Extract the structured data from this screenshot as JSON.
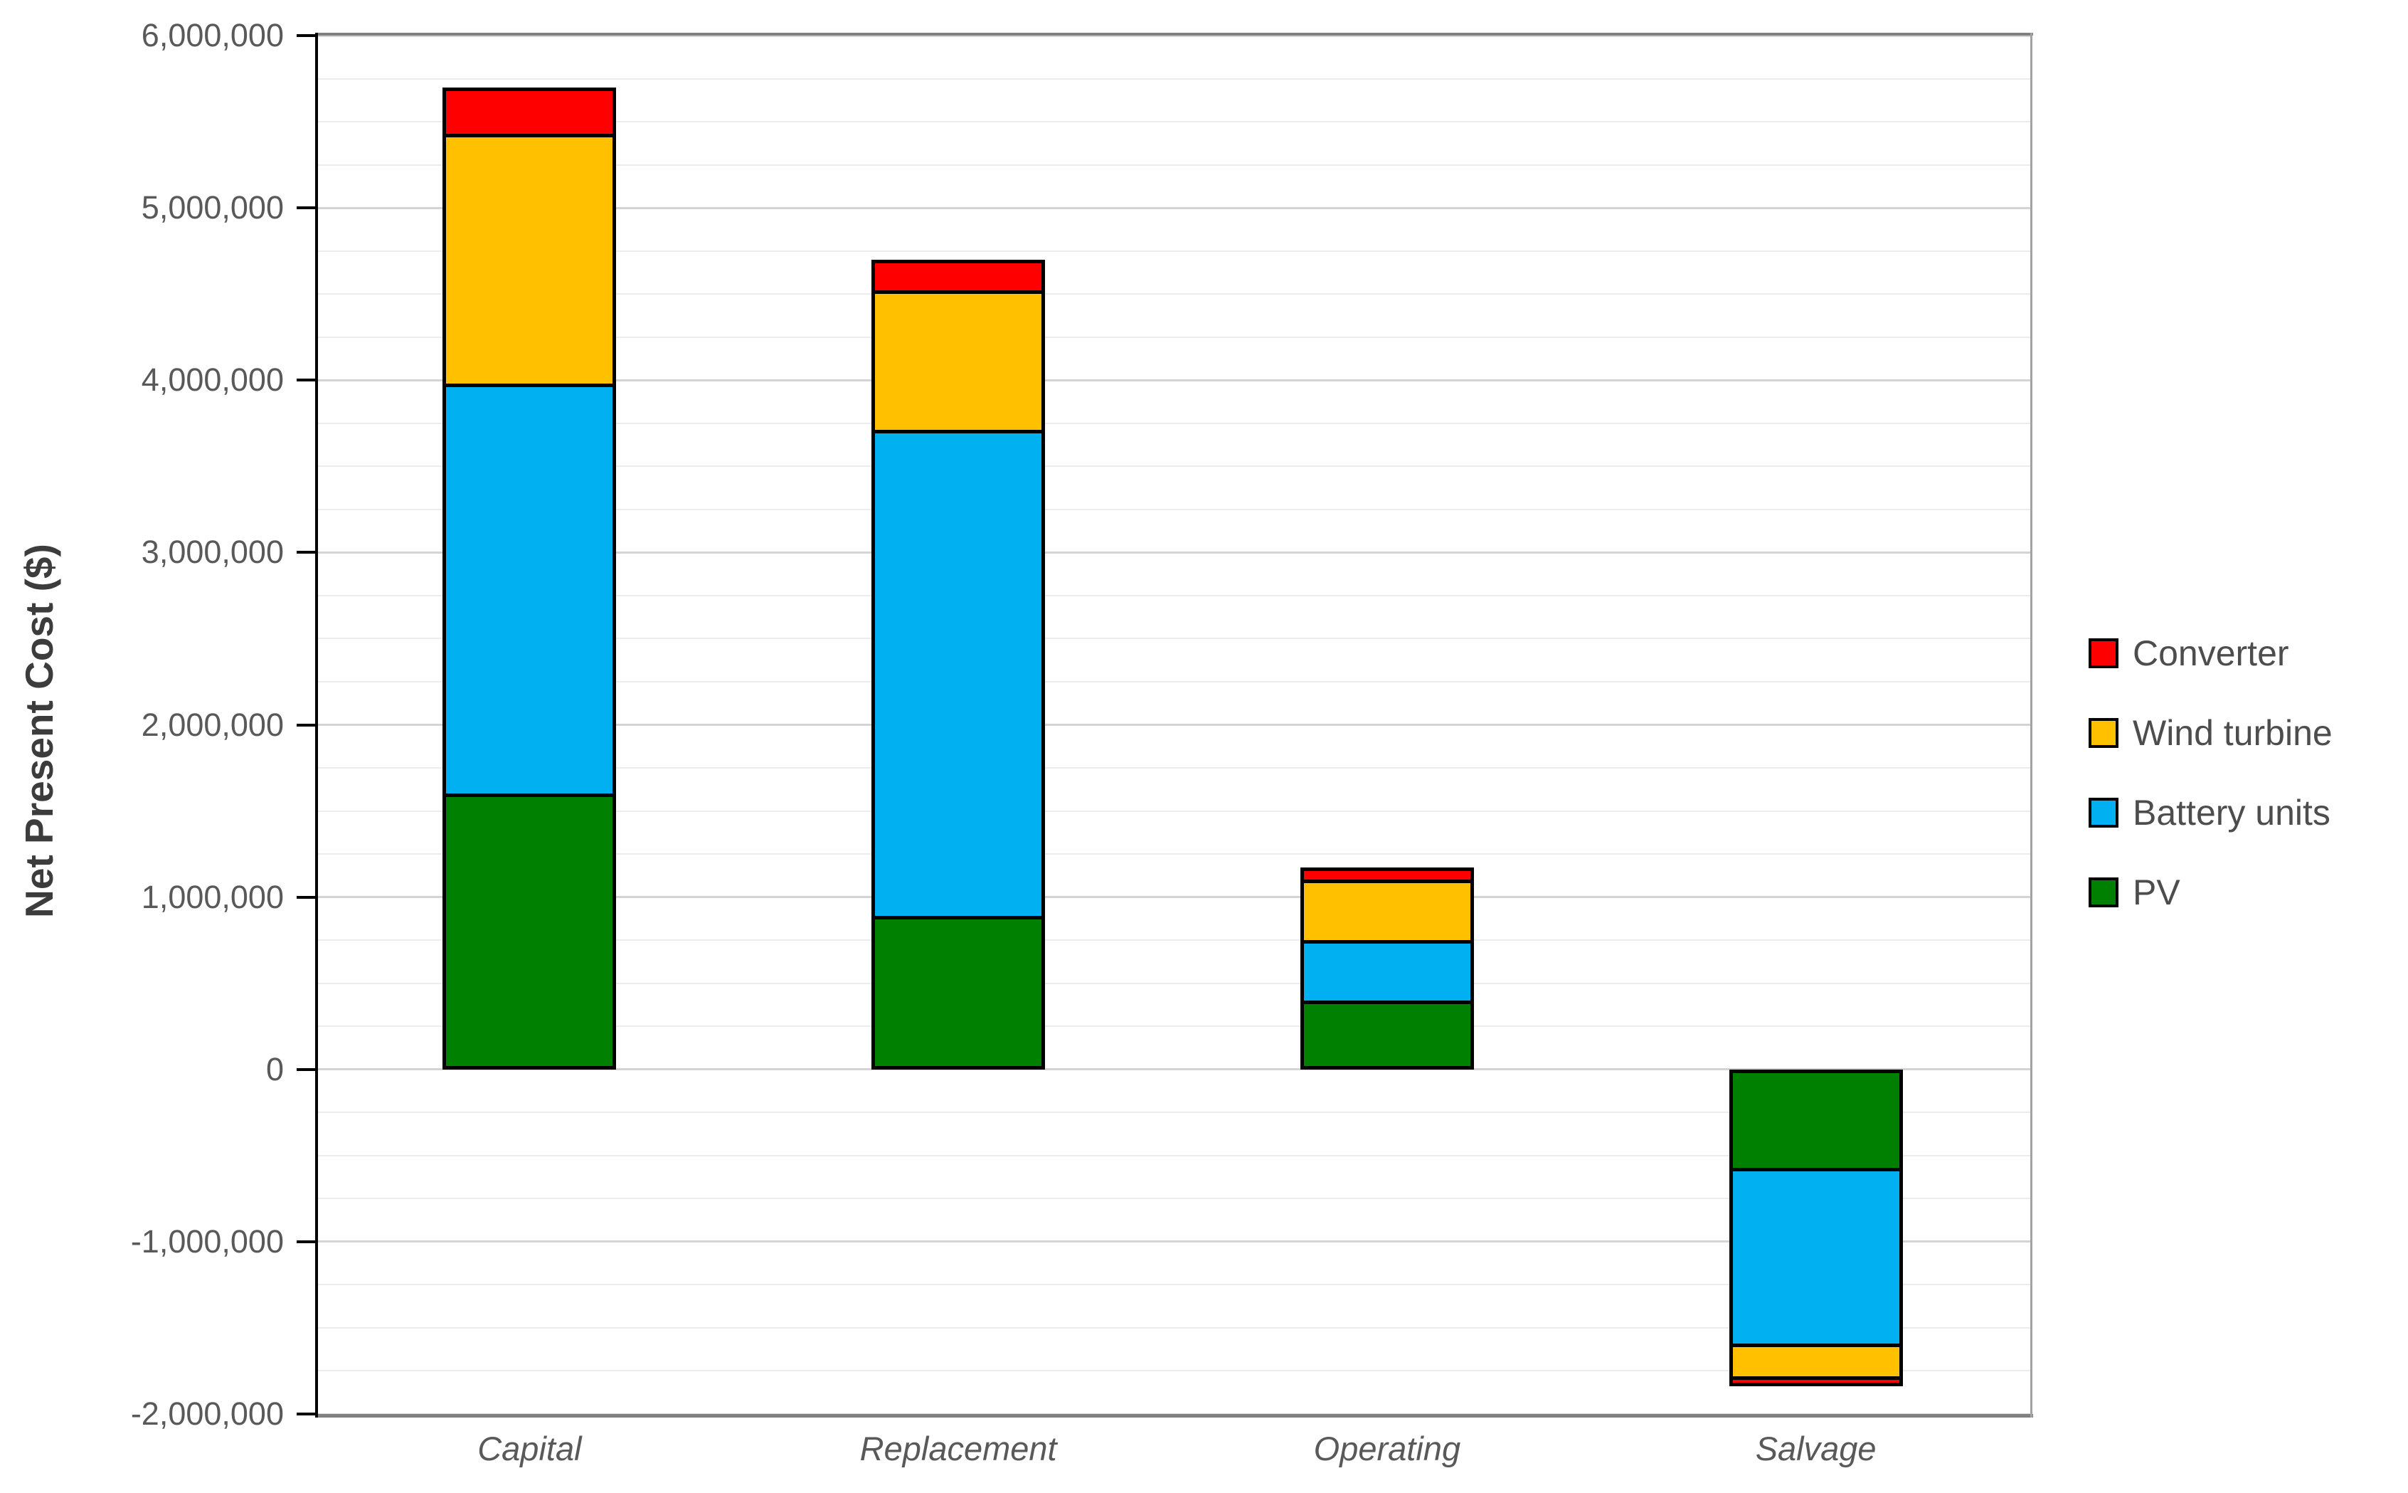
{
  "chart_data": {
    "type": "bar",
    "stacked": true,
    "title": "",
    "ylabel": "Net Present Cost ($)",
    "xlabel": "",
    "categories": [
      "Capital",
      "Replacement",
      "Operating",
      "Salvage"
    ],
    "series": [
      {
        "name": "PV",
        "color": "#008000",
        "values": [
          1600000,
          890000,
          400000,
          -590000
        ]
      },
      {
        "name": "Battery units",
        "color": "#00B0F0",
        "values": [
          2380000,
          2820000,
          350000,
          -1020000
        ]
      },
      {
        "name": "Wind turbine",
        "color": "#FFC000",
        "values": [
          1450000,
          810000,
          350000,
          -190000
        ]
      },
      {
        "name": "Converter",
        "color": "#FF0000",
        "values": [
          270000,
          180000,
          70000,
          -40000
        ]
      }
    ],
    "totals": [
      5700000,
      4700000,
      1170000,
      -1840000
    ],
    "ylim": [
      -2000000,
      6000000
    ],
    "y_major_step": 1000000,
    "y_minor_step": 250000,
    "y_tick_labels": [
      "6,000,000",
      "5,000,000",
      "4,000,000",
      "3,000,000",
      "2,000,000",
      "1,000,000",
      "0",
      "-1,000,000",
      "-2,000,000"
    ],
    "grid": true,
    "legend_position": "right",
    "legend_order_top_to_bottom": [
      "Converter",
      "Wind turbine",
      "Battery units",
      "PV"
    ]
  },
  "colors": {
    "grid_major": "#d4d4d4",
    "grid_minor": "#ececec",
    "plot_border": "#808080",
    "axis_line": "#000000",
    "tick_label": "#595959",
    "category_label": "#595959",
    "legend_label": "#4d4d4d",
    "y_title": "#3c3c3c",
    "background": "#ffffff"
  }
}
